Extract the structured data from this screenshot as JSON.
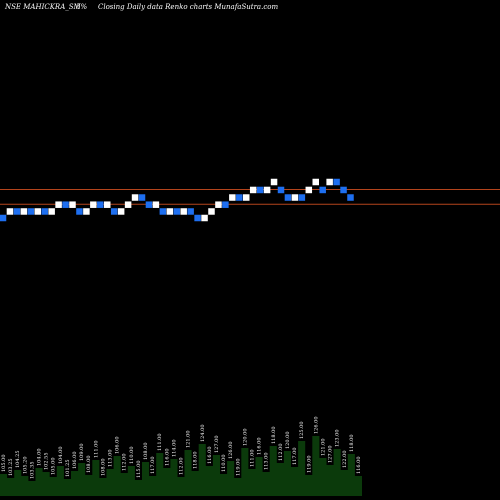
{
  "chart_data": {
    "type": "renko",
    "header": {
      "symbol": "NSE MAHICKRA_SM",
      "box": "5%",
      "description": "Closing Daily data  Renko  charts MunafaSutra.com"
    },
    "bricks": [
      {
        "p": 99.8,
        "d": "down"
      },
      {
        "p": 104.8,
        "d": "up"
      },
      {
        "p": 104.8,
        "d": "down"
      },
      {
        "p": 104.8,
        "d": "up"
      },
      {
        "p": 104.8,
        "d": "down"
      },
      {
        "p": 104.8,
        "d": "up"
      },
      {
        "p": 104.8,
        "d": "down"
      },
      {
        "p": 104.8,
        "d": "up"
      },
      {
        "p": 110.0,
        "d": "up"
      },
      {
        "p": 110.0,
        "d": "down"
      },
      {
        "p": 110.0,
        "d": "up"
      },
      {
        "p": 104.8,
        "d": "down"
      },
      {
        "p": 104.8,
        "d": "up"
      },
      {
        "p": 110.0,
        "d": "up"
      },
      {
        "p": 110.0,
        "d": "down"
      },
      {
        "p": 110.0,
        "d": "up"
      },
      {
        "p": 104.8,
        "d": "down"
      },
      {
        "p": 104.8,
        "d": "up"
      },
      {
        "p": 110.0,
        "d": "up"
      },
      {
        "p": 115.5,
        "d": "up"
      },
      {
        "p": 115.5,
        "d": "down"
      },
      {
        "p": 110.0,
        "d": "down"
      },
      {
        "p": 110.0,
        "d": "up"
      },
      {
        "p": 104.8,
        "d": "down"
      },
      {
        "p": 104.8,
        "d": "up"
      },
      {
        "p": 104.8,
        "d": "down"
      },
      {
        "p": 104.8,
        "d": "up"
      },
      {
        "p": 104.8,
        "d": "down"
      },
      {
        "p": 99.8,
        "d": "down"
      },
      {
        "p": 99.8,
        "d": "up"
      },
      {
        "p": 104.8,
        "d": "up"
      },
      {
        "p": 110.0,
        "d": "up"
      },
      {
        "p": 110.0,
        "d": "down"
      },
      {
        "p": 115.5,
        "d": "up"
      },
      {
        "p": 115.5,
        "d": "down"
      },
      {
        "p": 115.5,
        "d": "up"
      },
      {
        "p": 121.3,
        "d": "up"
      },
      {
        "p": 121.3,
        "d": "down"
      },
      {
        "p": 121.3,
        "d": "up"
      },
      {
        "p": 127.4,
        "d": "up"
      },
      {
        "p": 121.3,
        "d": "down"
      },
      {
        "p": 115.5,
        "d": "down"
      },
      {
        "p": 115.5,
        "d": "up"
      },
      {
        "p": 115.5,
        "d": "down"
      },
      {
        "p": 121.3,
        "d": "up"
      },
      {
        "p": 127.4,
        "d": "up"
      },
      {
        "p": 121.3,
        "d": "down"
      },
      {
        "p": 127.4,
        "d": "up"
      },
      {
        "p": 127.4,
        "d": "down"
      },
      {
        "p": 121.3,
        "d": "down"
      },
      {
        "p": 115.5,
        "d": "down"
      }
    ],
    "reference_lines": [
      121.3,
      110.0
    ],
    "volume": [
      {
        "v": 22,
        "label": "105.00"
      },
      {
        "v": 18,
        "label": "103.25"
      },
      {
        "v": 26,
        "label": "104.25"
      },
      {
        "v": 20,
        "label": "105.20"
      },
      {
        "v": 15,
        "label": "103.35"
      },
      {
        "v": 28,
        "label": "104.00"
      },
      {
        "v": 24,
        "label": "102.55"
      },
      {
        "v": 19,
        "label": "105.00"
      },
      {
        "v": 30,
        "label": "104.00"
      },
      {
        "v": 17,
        "label": "101.25"
      },
      {
        "v": 25,
        "label": "106.00"
      },
      {
        "v": 33,
        "label": "109.00"
      },
      {
        "v": 21,
        "label": "108.00"
      },
      {
        "v": 36,
        "label": "111.00"
      },
      {
        "v": 18,
        "label": "108.00"
      },
      {
        "v": 27,
        "label": "113.00"
      },
      {
        "v": 40,
        "label": "106.00"
      },
      {
        "v": 23,
        "label": "112.00"
      },
      {
        "v": 30,
        "label": "110.00"
      },
      {
        "v": 16,
        "label": "115.00"
      },
      {
        "v": 34,
        "label": "108.00"
      },
      {
        "v": 20,
        "label": "117.00"
      },
      {
        "v": 43,
        "label": "111.00"
      },
      {
        "v": 28,
        "label": "116.00"
      },
      {
        "v": 37,
        "label": "114.00"
      },
      {
        "v": 19,
        "label": "112.00"
      },
      {
        "v": 46,
        "label": "121.00"
      },
      {
        "v": 25,
        "label": "118.00"
      },
      {
        "v": 52,
        "label": "124.00"
      },
      {
        "v": 30,
        "label": "116.00"
      },
      {
        "v": 41,
        "label": "127.00"
      },
      {
        "v": 22,
        "label": "110.00"
      },
      {
        "v": 35,
        "label": "126.00"
      },
      {
        "v": 18,
        "label": "119.00"
      },
      {
        "v": 48,
        "label": "120.00"
      },
      {
        "v": 27,
        "label": "111.00"
      },
      {
        "v": 39,
        "label": "116.00"
      },
      {
        "v": 24,
        "label": "113.00"
      },
      {
        "v": 50,
        "label": "118.00"
      },
      {
        "v": 33,
        "label": "112.00"
      },
      {
        "v": 45,
        "label": "120.00"
      },
      {
        "v": 29,
        "label": "117.00"
      },
      {
        "v": 55,
        "label": "125.00"
      },
      {
        "v": 21,
        "label": "119.00"
      },
      {
        "v": 60,
        "label": "126.00"
      },
      {
        "v": 38,
        "label": "121.00"
      },
      {
        "v": 31,
        "label": "127.00"
      },
      {
        "v": 47,
        "label": "123.00"
      },
      {
        "v": 26,
        "label": "122.00"
      },
      {
        "v": 42,
        "label": "118.00"
      },
      {
        "v": 20,
        "label": "116.00"
      }
    ]
  },
  "colors": {
    "background": "#000000",
    "up_brick": "#ffffff",
    "down_brick": "#1e6ff0",
    "reference_line": "#b4441c",
    "volume": "#0b3a0b",
    "text": "#ffffff"
  }
}
